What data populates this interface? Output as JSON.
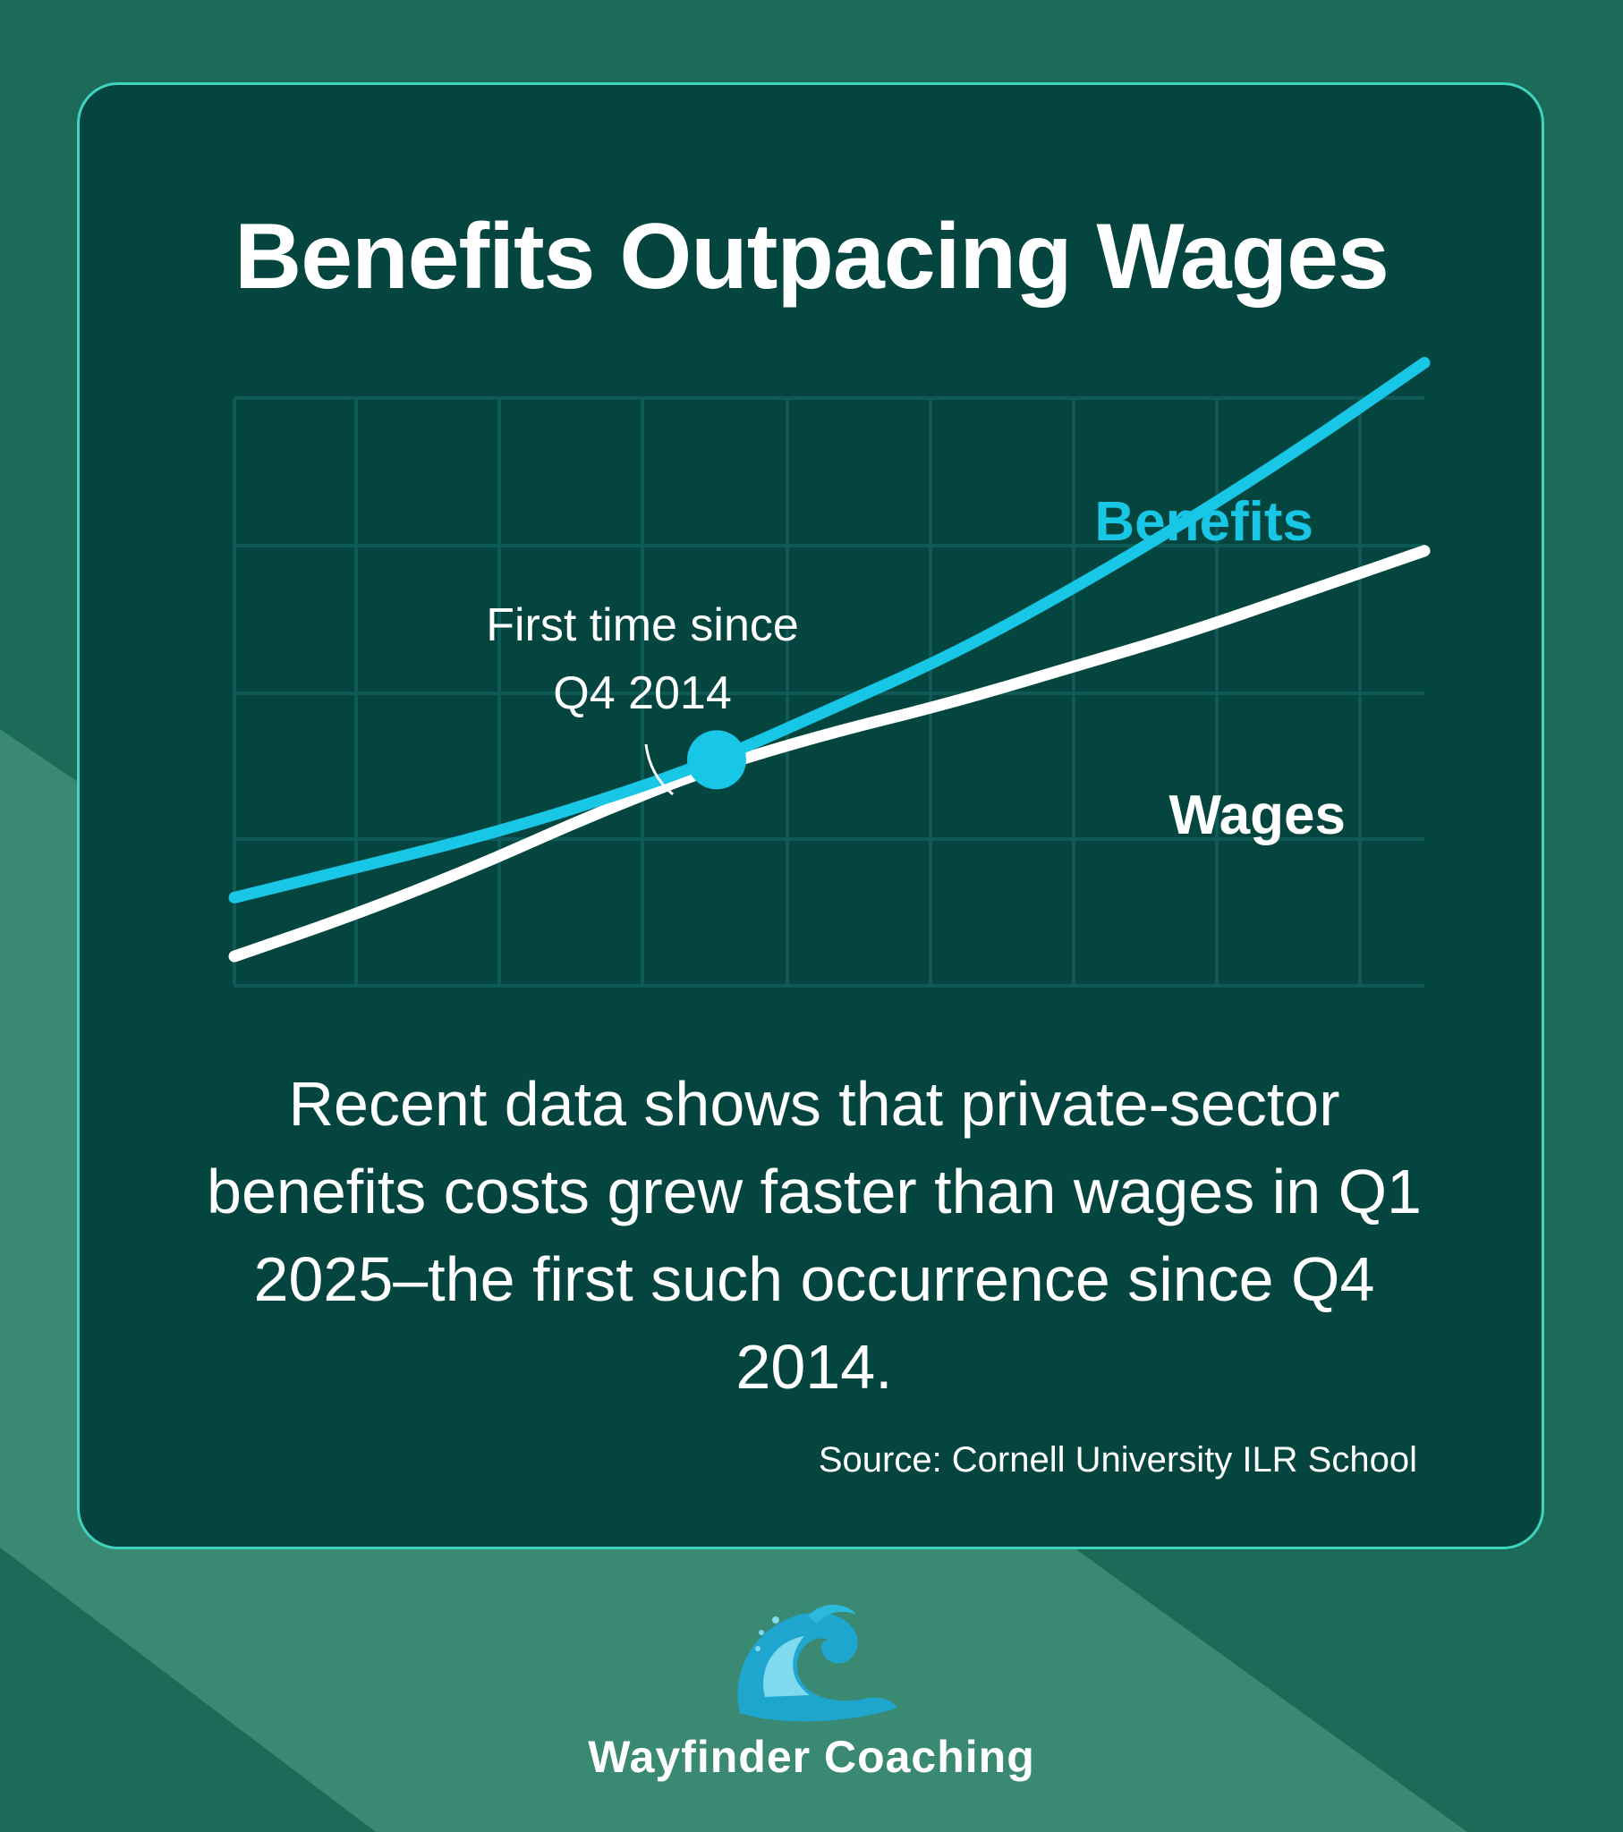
{
  "title": "Benefits Outpacing Wages",
  "body_text": "Recent data shows that private-sector benefits costs grew faster than wages in Q1 2025–the first such occurrence since Q4 2014.",
  "source": "Source: Cornell University ILR School",
  "brand": {
    "name": "Wayfinder Coaching",
    "logo_icon": "wave-logo-icon"
  },
  "colors": {
    "background": "#1b6b58",
    "card": "#04463f",
    "card_border": "#3fd3c2",
    "benefits": "#18c6e6",
    "wages": "#ffffff",
    "grid": "#0d5a57"
  },
  "chart_data": {
    "type": "line",
    "title": "Benefits Outpacing Wages",
    "xlabel": "",
    "ylabel": "",
    "x": [
      0,
      1,
      2,
      3,
      4,
      5,
      6,
      7,
      8,
      9,
      10
    ],
    "xlim": [
      0,
      10
    ],
    "ylim": [
      0,
      10
    ],
    "grid": true,
    "series": [
      {
        "name": "Benefits",
        "color": "#18c6e6",
        "values": [
          1.5,
          2.0,
          2.5,
          3.1,
          3.8,
          4.7,
          5.6,
          6.7,
          7.9,
          9.2,
          10.6
        ]
      },
      {
        "name": "Wages",
        "color": "#ffffff",
        "values": [
          0.5,
          1.2,
          2.0,
          2.9,
          3.7,
          4.3,
          4.8,
          5.4,
          6.0,
          6.7,
          7.4
        ]
      }
    ],
    "annotations": [
      {
        "text_lines": [
          "First time since",
          "Q4 2014"
        ],
        "x": 4.0,
        "y": 3.8
      }
    ]
  }
}
